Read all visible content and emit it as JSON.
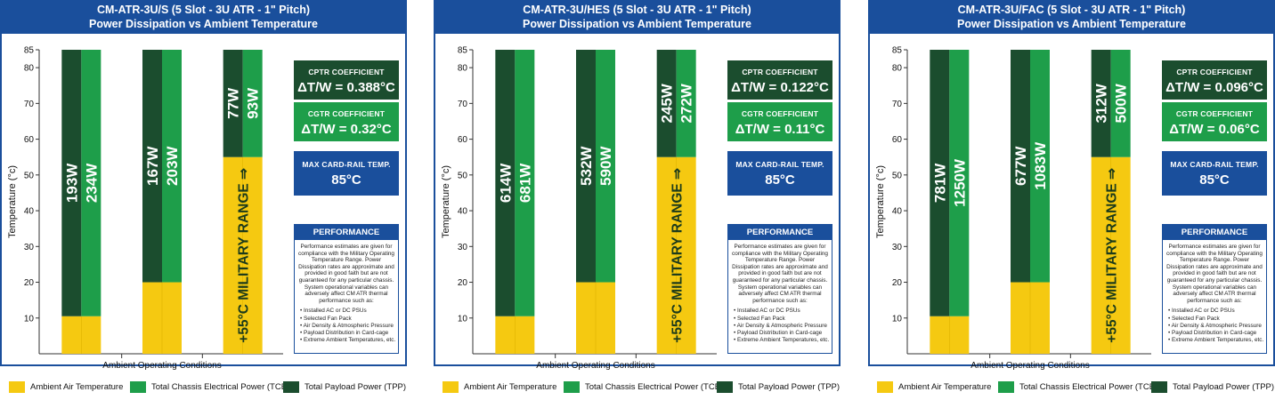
{
  "colors": {
    "ambient": "#f5c911",
    "tcep": "#1e9e4a",
    "tpp": "#1b4d2e",
    "accent": "#1a4f9c"
  },
  "legend": {
    "ambient": "Ambient Air Temperature",
    "tcep": "Total Chassis Electrical Power (TCEP)",
    "tpp": "Total Payload Power (TPP)"
  },
  "performance": {
    "title": "PERFORMANCE",
    "text": "Performance estimates are given for compliance with the Military Operating Temperature Range. Power Dissipation rates are approximate and provided in good faith but are not guaranteed for any particular chassis. System operational variables can adversely affect CM ATR thermal performance such as:",
    "items": [
      "Installed AC or DC PSUs",
      "Selected Fan Pack",
      "Air Density & Atmospheric Pressure",
      "Payload Distribution in Card-cage",
      "Extreme Ambient Temperatures, etc."
    ]
  },
  "panels": [
    {
      "title": "CM-ATR-3U/S (5 Slot - 3U ATR - 1\" Pitch)",
      "subtitle": "Power Dissipation vs Ambient Temperature",
      "cptr_label": "CPTR COEFFICIENT",
      "cptr_value": "ΔT/W = 0.388°C",
      "cgtr_label": "CGTR COEFFICIENT",
      "cgtr_value": "ΔT/W = 0.32°C",
      "max_label": "MAX CARD-RAIL TEMP.",
      "max_value": "85°C"
    },
    {
      "title": "CM-ATR-3U/HES (5 Slot - 3U ATR - 1\" Pitch)",
      "subtitle": "Power Dissipation vs Ambient Temperature",
      "cptr_label": "CPTR COEFFICIENT",
      "cptr_value": "ΔT/W = 0.122°C",
      "cgtr_label": "CGTR COEFFICIENT",
      "cgtr_value": "ΔT/W = 0.11°C",
      "max_label": "MAX CARD-RAIL TEMP.",
      "max_value": "85°C"
    },
    {
      "title": "CM-ATR-3U/FAC (5 Slot - 3U ATR - 1\" Pitch)",
      "subtitle": "Power Dissipation vs Ambient Temperature",
      "cptr_label": "CPTR COEFFICIENT",
      "cptr_value": "ΔT/W = 0.096°C",
      "cgtr_label": "CGTR COEFFICIENT",
      "cgtr_value": "ΔT/W = 0.06°C",
      "max_label": "MAX CARD-RAIL TEMP.",
      "max_value": "85°C"
    }
  ],
  "chart_data": [
    {
      "type": "bar",
      "title": "CM-ATR-3U/S (5 Slot - 3U ATR - 1\" Pitch)",
      "subtitle": "Power Dissipation vs Ambient Temperature",
      "xlabel": "Ambient Operating Conditions",
      "ylabel": "Temperature (°c)",
      "ylim": [
        0,
        85
      ],
      "yticks": [
        10,
        20,
        30,
        40,
        50,
        60,
        70,
        80,
        85
      ],
      "groups": [
        {
          "ambient": 10.5,
          "top": 85,
          "tpp_label": "193W",
          "tcep_label": "234W"
        },
        {
          "ambient": 20,
          "top": 85,
          "tpp_label": "167W",
          "tcep_label": "203W"
        },
        {
          "ambient": 55,
          "top": 85,
          "tpp_label": "77W",
          "tcep_label": "93W",
          "range_label": "+55°C MILITARY RANGE ⇒"
        }
      ]
    },
    {
      "type": "bar",
      "title": "CM-ATR-3U/HES (5 Slot - 3U ATR - 1\" Pitch)",
      "subtitle": "Power Dissipation vs Ambient Temperature",
      "xlabel": "Ambient Operating Conditions",
      "ylabel": "Temperature (°c)",
      "ylim": [
        0,
        85
      ],
      "yticks": [
        10,
        20,
        30,
        40,
        50,
        60,
        70,
        80,
        85
      ],
      "groups": [
        {
          "ambient": 10.5,
          "top": 85,
          "tpp_label": "614W",
          "tcep_label": "681W"
        },
        {
          "ambient": 20,
          "top": 85,
          "tpp_label": "532W",
          "tcep_label": "590W"
        },
        {
          "ambient": 55,
          "top": 85,
          "tpp_label": "245W",
          "tcep_label": "272W",
          "range_label": "+55°C MILITARY RANGE ⇒"
        }
      ]
    },
    {
      "type": "bar",
      "title": "CM-ATR-3U/FAC (5 Slot - 3U ATR - 1\" Pitch)",
      "subtitle": "Power Dissipation vs Ambient Temperature",
      "xlabel": "Ambient Operating Conditions",
      "ylabel": "Temperature (°c)",
      "ylim": [
        0,
        85
      ],
      "yticks": [
        10,
        20,
        30,
        40,
        50,
        60,
        70,
        80,
        85
      ],
      "groups": [
        {
          "ambient": 10.5,
          "top": 85,
          "tpp_label": "781W",
          "tcep_label": "1250W"
        },
        {
          "ambient": 20,
          "top": 85,
          "tpp_label": "677W",
          "tcep_label": "1083W"
        },
        {
          "ambient": 55,
          "top": 85,
          "tpp_label": "312W",
          "tcep_label": "500W",
          "range_label": "+55°C MILITARY RANGE ⇒"
        }
      ]
    }
  ]
}
